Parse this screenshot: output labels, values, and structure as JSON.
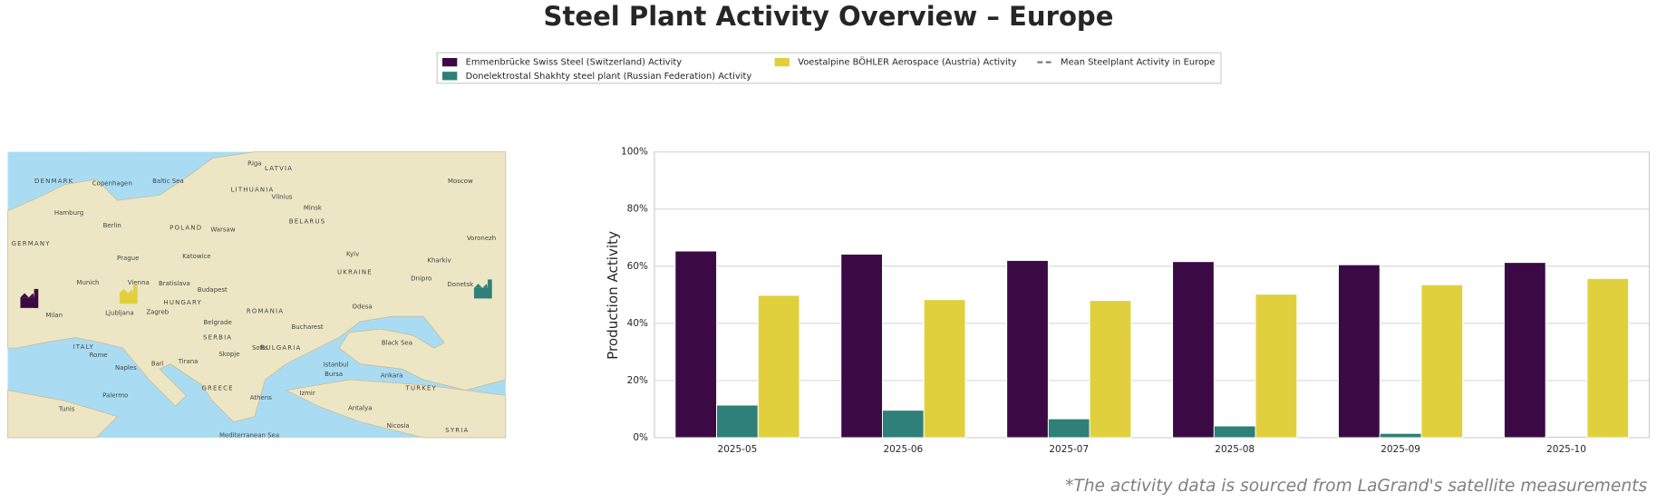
{
  "chart_data": {
    "type": "bar",
    "title": "Steel Plant Activity Overview – Europe",
    "ylabel": "Production Activity",
    "categories": [
      "2025-05",
      "2025-06",
      "2025-07",
      "2025-08",
      "2025-09",
      "2025-10"
    ],
    "series": [
      {
        "name": "Emmenbrücke Swiss Steel (Switzerland) Activity",
        "color": "#3b0a45",
        "values": [
          65.3,
          64.2,
          62.0,
          61.6,
          60.5,
          61.3
        ]
      },
      {
        "name": "Donelektrostal Shakhty steel plant (Russian Federation) Activity",
        "color": "#2e8079",
        "values": [
          11.4,
          9.6,
          6.6,
          4.1,
          1.5,
          0.4
        ]
      },
      {
        "name": "Voestalpine BÖHLER Aerospace (Austria) Activity",
        "color": "#e1d03d",
        "values": [
          49.8,
          48.3,
          48.0,
          50.2,
          53.5,
          55.7
        ]
      },
      {
        "name": "Mean Steelplant Activity in Europe",
        "color": "#808080",
        "type": "line",
        "dashed": true,
        "values": [
          null,
          null,
          null,
          null,
          null,
          null
        ]
      }
    ],
    "ylim": [
      0,
      100
    ],
    "yticks": [
      {
        "value": 0,
        "label": "0%"
      },
      {
        "value": 20,
        "label": "20%"
      },
      {
        "value": 40,
        "label": "40%"
      },
      {
        "value": 60,
        "label": "60%"
      },
      {
        "value": 80,
        "label": "80%"
      },
      {
        "value": 100,
        "label": "100%"
      }
    ],
    "grid": true,
    "legend": "top",
    "footnote": "*The activity data is sourced from LaGrand's satellite measurements"
  },
  "map": {
    "labels": [
      "Riga",
      "LATVIA",
      "DENMARK",
      "Copenhagen",
      "Baltic Sea",
      "LITHUANIA",
      "Vilnius",
      "Moscow",
      "Hamburg",
      "Berlin",
      "POLAND",
      "Warsaw",
      "Minsk",
      "BELARUS",
      "Voronezh",
      "GERMANY",
      "Prague",
      "Katowice",
      "Kyiv",
      "Kharkiv",
      "UKRAINE",
      "Dnipro",
      "Donetsk",
      "Vienna",
      "Munich",
      "Bratislava",
      "Budapest",
      "HUNGARY",
      "Milan",
      "Zagreb",
      "Ljubljana",
      "ROMANIA",
      "Belgrade",
      "Bucharest",
      "Odesa",
      "Black Sea",
      "SERBIA",
      "BULGARIA",
      "Sofia",
      "Skopje",
      "Rome",
      "ITALY",
      "Naples",
      "Bari",
      "Tirana",
      "Istanbul",
      "Bursa",
      "Ankara",
      "TURKEY",
      "GREECE",
      "Athens",
      "Izmir",
      "Antalya",
      "Palermo",
      "Tunis",
      "Nicosia",
      "SYRIA",
      "Mediterranean Sea"
    ]
  }
}
